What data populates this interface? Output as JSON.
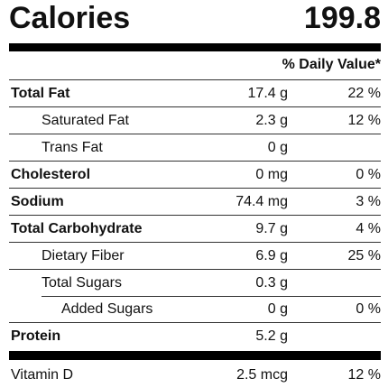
{
  "calories": {
    "label": "Calories",
    "value": "199.8"
  },
  "daily_value_header": "% Daily Value*",
  "nutrients": [
    {
      "name": "Total Fat",
      "amount": "17.4 g",
      "dv": "22 %",
      "bold": true,
      "indent": 0
    },
    {
      "name": "Saturated Fat",
      "amount": "2.3 g",
      "dv": "12 %",
      "bold": false,
      "indent": 1
    },
    {
      "name": "Trans Fat",
      "amount": "0 g",
      "dv": "",
      "bold": false,
      "indent": 1
    },
    {
      "name": "Cholesterol",
      "amount": "0 mg",
      "dv": "0 %",
      "bold": true,
      "indent": 0
    },
    {
      "name": "Sodium",
      "amount": "74.4 mg",
      "dv": "3 %",
      "bold": true,
      "indent": 0
    },
    {
      "name": "Total Carbohydrate",
      "amount": "9.7 g",
      "dv": "4 %",
      "bold": true,
      "indent": 0
    },
    {
      "name": "Dietary Fiber",
      "amount": "6.9 g",
      "dv": "25 %",
      "bold": false,
      "indent": 1
    },
    {
      "name": "Total Sugars",
      "amount": "0.3 g",
      "dv": "",
      "bold": false,
      "indent": 1
    },
    {
      "name": "Added Sugars",
      "amount": "0 g",
      "dv": "0 %",
      "bold": false,
      "indent": 2
    },
    {
      "name": "Protein",
      "amount": "5.2 g",
      "dv": "",
      "bold": true,
      "indent": 0
    }
  ],
  "vitamins": [
    {
      "name": "Vitamin D",
      "amount": "2.5 mcg",
      "dv": "12 %"
    }
  ]
}
